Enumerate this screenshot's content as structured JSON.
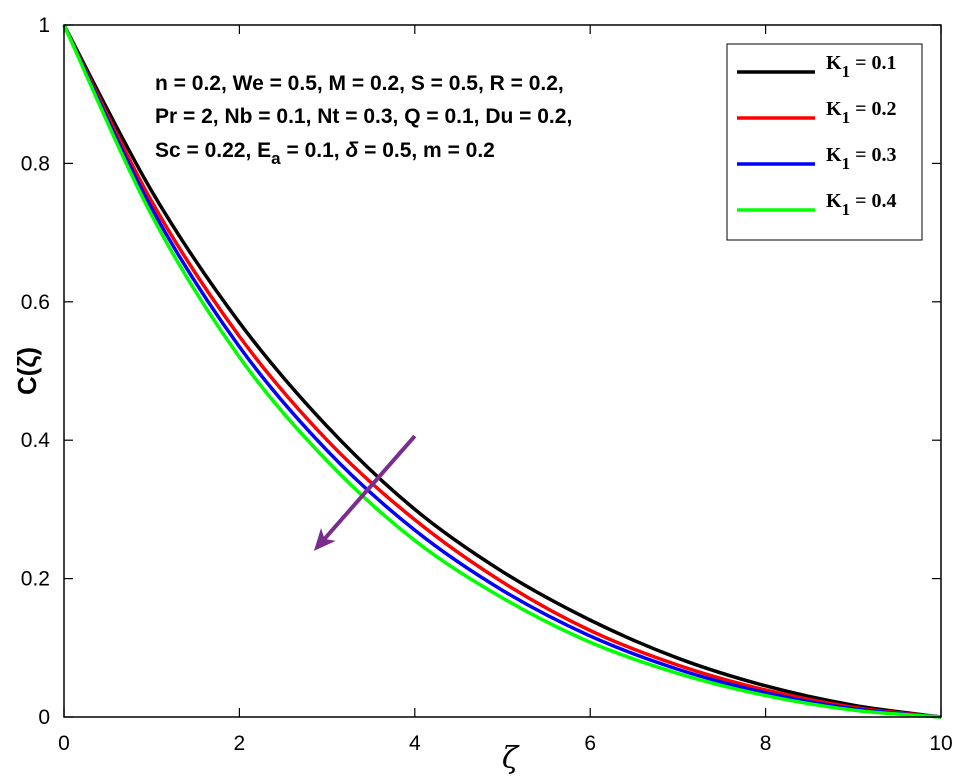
{
  "chart_data": {
    "type": "line",
    "xlabel": "ζ",
    "ylabel": "C(ζ)",
    "xlim": [
      0,
      10
    ],
    "ylim": [
      0,
      1
    ],
    "x_ticks": [
      "0",
      "2",
      "4",
      "6",
      "8",
      "10"
    ],
    "y_ticks": [
      "0",
      "0.2",
      "0.4",
      "0.6",
      "0.8",
      "1"
    ],
    "grid": false,
    "legend_position": "top-right",
    "annotation_lines": [
      "n = 0.2, We = 0.5, M = 0.2, S = 0.5, R = 0.2,",
      "Pr = 2, Nb = 0.1, Nt = 0.3, Q = 0.1, Du = 0.2,",
      "Sc = 0.22,  E",
      "a",
      " = 0.1, ",
      "δ",
      " = 0.5, m = 0.2"
    ],
    "arrow": {
      "from": [
        4.0,
        0.406
      ],
      "to": [
        2.85,
        0.24
      ],
      "color": "#7B2D8E"
    },
    "x": [
      0,
      1,
      2,
      3,
      4,
      5,
      6,
      7,
      8,
      9,
      10
    ],
    "series": [
      {
        "name": "K",
        "subscript": "1",
        "suffix": " = 0.1",
        "color": "#000000",
        "values": [
          1.0,
          0.76,
          0.57,
          0.42,
          0.3,
          0.21,
          0.14,
          0.085,
          0.045,
          0.017,
          0.0
        ]
      },
      {
        "name": "K",
        "subscript": "1",
        "suffix": " = 0.2",
        "color": "#FF0000",
        "values": [
          1.0,
          0.745,
          0.55,
          0.4,
          0.285,
          0.195,
          0.125,
          0.075,
          0.039,
          0.014,
          0.0
        ]
      },
      {
        "name": "K",
        "subscript": "1",
        "suffix": " = 0.3",
        "color": "#0000FF",
        "values": [
          1.0,
          0.735,
          0.535,
          0.385,
          0.27,
          0.183,
          0.117,
          0.069,
          0.035,
          0.012,
          0.0
        ]
      },
      {
        "name": "K",
        "subscript": "1",
        "suffix": " = 0.4",
        "color": "#00FF00",
        "values": [
          1.0,
          0.725,
          0.52,
          0.37,
          0.255,
          0.172,
          0.108,
          0.063,
          0.031,
          0.01,
          0.0
        ]
      }
    ]
  }
}
